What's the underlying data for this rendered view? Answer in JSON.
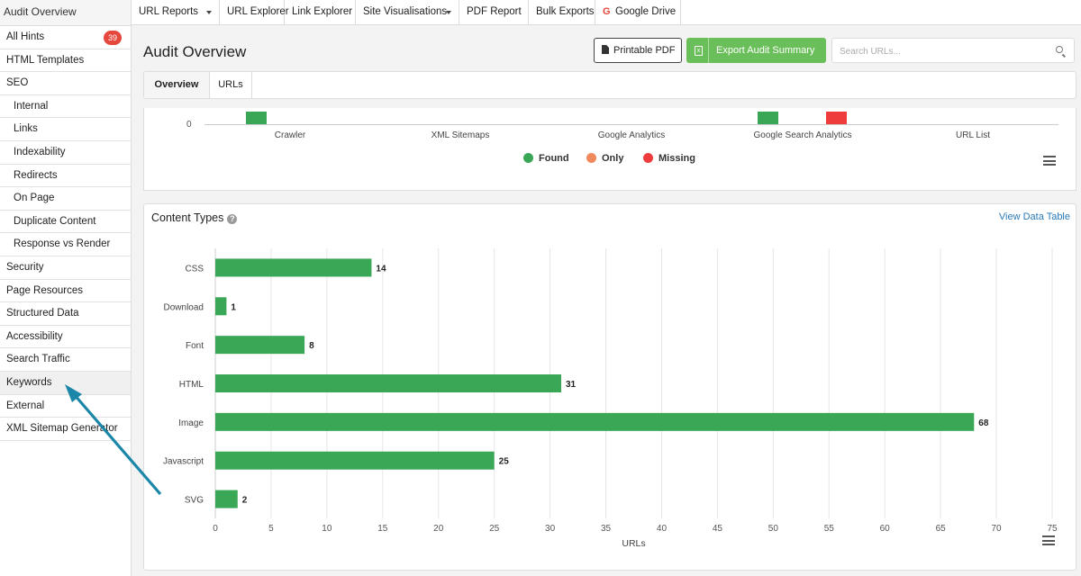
{
  "sidebar": {
    "header": "Audit Overview",
    "items": [
      {
        "label": "All Hints",
        "badge": "39",
        "sub": false
      },
      {
        "label": "HTML Templates",
        "sub": false
      },
      {
        "label": "SEO",
        "sub": false
      },
      {
        "label": "Internal",
        "sub": true
      },
      {
        "label": "Links",
        "sub": true
      },
      {
        "label": "Indexability",
        "sub": true
      },
      {
        "label": "Redirects",
        "sub": true
      },
      {
        "label": "On Page",
        "sub": true
      },
      {
        "label": "Duplicate Content",
        "sub": true
      },
      {
        "label": "Response vs Render",
        "sub": true
      },
      {
        "label": "Security",
        "sub": false
      },
      {
        "label": "Page Resources",
        "sub": false
      },
      {
        "label": "Structured Data",
        "sub": false
      },
      {
        "label": "Accessibility",
        "sub": false
      },
      {
        "label": "Search Traffic",
        "sub": false
      },
      {
        "label": "Keywords",
        "sub": false,
        "active": true
      },
      {
        "label": "External",
        "sub": false
      },
      {
        "label": "XML Sitemap Generator",
        "sub": false
      }
    ]
  },
  "topnav": {
    "items": [
      {
        "label": "URL Reports",
        "dropdown": true
      },
      {
        "label": "URL Explorer",
        "dropdown": false
      },
      {
        "label": "Link Explorer",
        "dropdown": false
      },
      {
        "label": "Site Visualisations",
        "dropdown": true
      },
      {
        "label": "PDF Report",
        "dropdown": false
      },
      {
        "label": "Bulk Exports",
        "dropdown": false
      },
      {
        "label": "Google Drive",
        "dropdown": false,
        "icon": "google-icon",
        "icon_glyph": "G"
      }
    ]
  },
  "header": {
    "title": "Audit Overview",
    "printable_pdf_label": "Printable PDF",
    "export_label": "Export Audit Summary",
    "search_placeholder": "Search URLs..."
  },
  "tabs": [
    {
      "label": "Overview",
      "active": true
    },
    {
      "label": "URLs",
      "active": false
    }
  ],
  "sources_panel": {
    "zero_tick": "0",
    "categories": [
      "Crawler",
      "XML Sitemaps",
      "Google Analytics",
      "Google Search Analytics",
      "URL List"
    ],
    "legend": [
      {
        "label": "Found",
        "color": "#3aa757"
      },
      {
        "label": "Only",
        "color": "#f08a5d"
      },
      {
        "label": "Missing",
        "color": "#ee3b3b"
      }
    ]
  },
  "content_panel": {
    "title": "Content Types",
    "view_table_label": "View Data Table"
  },
  "chart_data": {
    "type": "bar",
    "orientation": "horizontal",
    "title": "Content Types",
    "categories": [
      "CSS",
      "Download",
      "Font",
      "HTML",
      "Image",
      "Javascript",
      "SVG"
    ],
    "values": [
      14,
      1,
      8,
      31,
      68,
      25,
      2
    ],
    "xlabel": "URLs",
    "ylabel": "",
    "xlim": [
      0,
      75
    ],
    "xticks": [
      0,
      5,
      10,
      15,
      20,
      25,
      30,
      35,
      40,
      45,
      50,
      55,
      60,
      65,
      70,
      75
    ],
    "bar_color": "#3aa757",
    "grid": true
  },
  "annotation": {
    "arrow_color": "#1a86a8"
  }
}
